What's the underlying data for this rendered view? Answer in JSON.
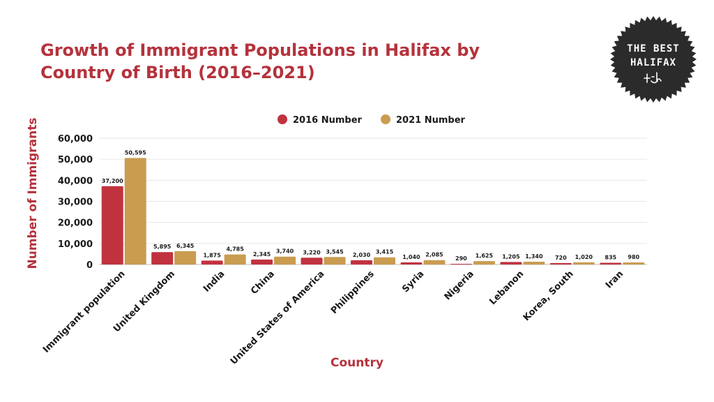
{
  "colors": {
    "title": "#b5323c",
    "series_2016": "#c1323f",
    "series_2021": "#c99c50",
    "badge_bg": "#2b2b2b"
  },
  "logo": {
    "line1": "THE BEST",
    "line2": "HALIFAX",
    "icon": "smiley-glyph-icon"
  },
  "chart_data": {
    "type": "bar",
    "title": "Growth of Immigrant Populations in Halifax by Country of Birth (2016–2021)",
    "xlabel": "Country",
    "ylabel": "Number of Immigrants",
    "ylim": [
      0,
      60000
    ],
    "yticks": [
      0,
      10000,
      20000,
      30000,
      40000,
      50000,
      60000
    ],
    "ytick_labels": [
      "0",
      "10,000",
      "20,000",
      "30,000",
      "40,000",
      "50,000",
      "60,000"
    ],
    "grid": true,
    "legend_position": "top-center",
    "categories": [
      "Immigrant population",
      "United Kingdom",
      "India",
      "China",
      "United States of America",
      "Philippines",
      "Syria",
      "Nigeria",
      "Lebanon",
      "Korea, South",
      "Iran"
    ],
    "series": [
      {
        "name": "2016 Number",
        "values": [
          37200,
          5895,
          1875,
          2345,
          3220,
          2030,
          1040,
          290,
          1205,
          720,
          835
        ],
        "labels": [
          "37,200",
          "5,895",
          "1,875",
          "2,345",
          "3,220",
          "2,030",
          "1,040",
          "290",
          "1,205",
          "720",
          "835"
        ]
      },
      {
        "name": "2021 Number",
        "values": [
          50595,
          6345,
          4785,
          3740,
          3545,
          3415,
          2085,
          1625,
          1340,
          1020,
          980
        ],
        "labels": [
          "50,595",
          "6,345",
          "4,785",
          "3,740",
          "3,545",
          "3,415",
          "2,085",
          "1,625",
          "1,340",
          "1,020",
          "980"
        ]
      }
    ]
  }
}
